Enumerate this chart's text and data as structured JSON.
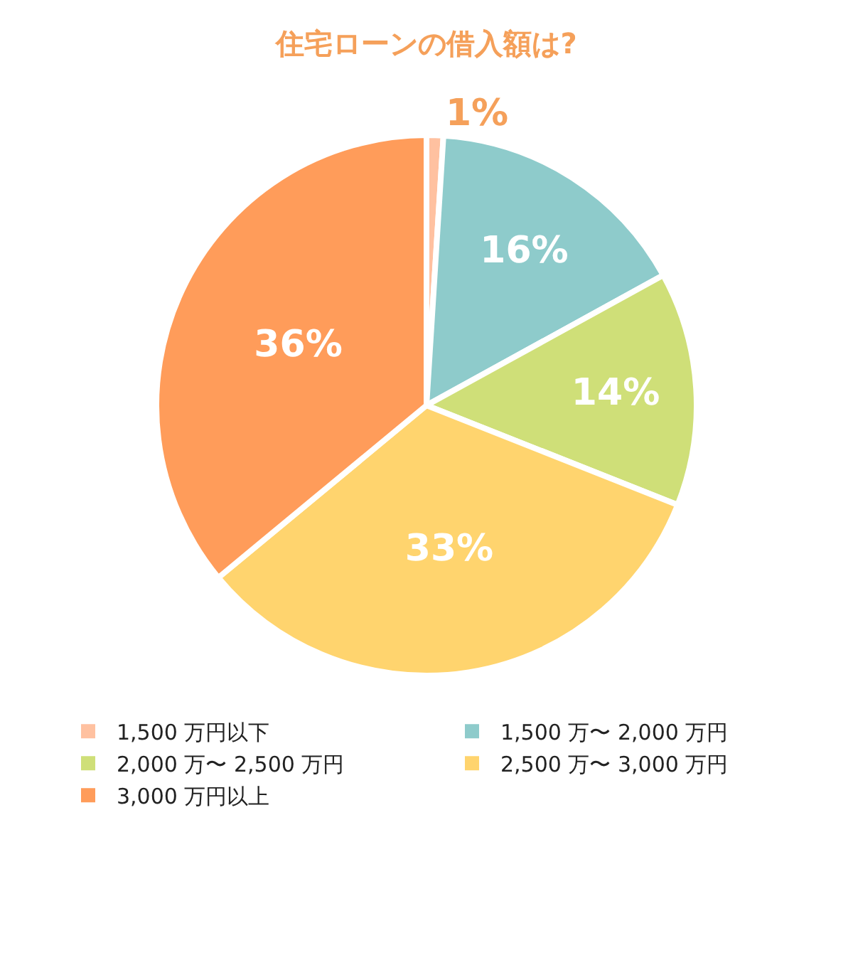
{
  "chart_data": {
    "type": "pie",
    "title": "住宅ローンの借入額は?",
    "categories": [
      "1,500 万円以下",
      "1,500 万〜 2,000 万円",
      "2,000 万〜 2,500 万円",
      "2,500 万〜 3,000 万円",
      "3,000 万円以上"
    ],
    "values": [
      1,
      16,
      14,
      33,
      36
    ],
    "colors": [
      "#ffc1a0",
      "#8ecbcb",
      "#cfdf78",
      "#ffd46e",
      "#ff9c5a"
    ],
    "value_labels": [
      "1%",
      "16%",
      "14%",
      "33%",
      "36%"
    ],
    "legend": "bottom"
  }
}
